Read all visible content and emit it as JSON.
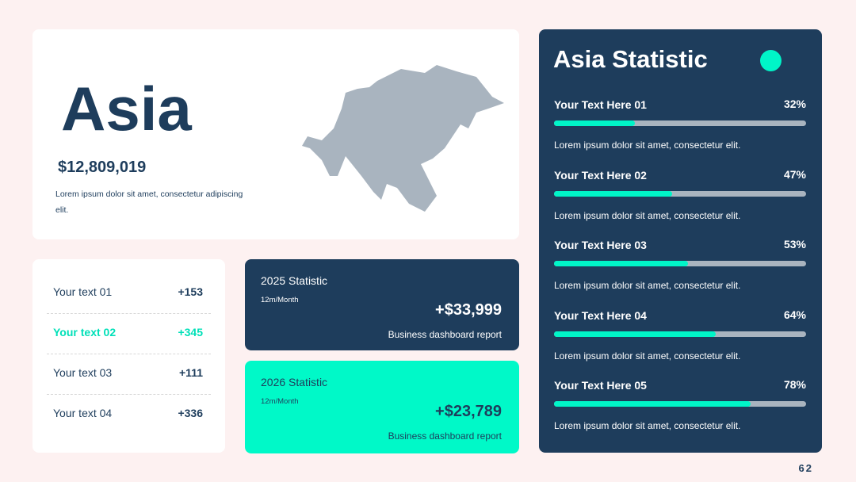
{
  "overview": {
    "title": "Asia",
    "amount": "$12,809,019",
    "description": "Lorem ipsum dolor sit amet, consectetur adipiscing elit."
  },
  "list": [
    {
      "label": "Your text 01",
      "value": "+153"
    },
    {
      "label": "Your text 02",
      "value": "+345"
    },
    {
      "label": "Your text 03",
      "value": "+111"
    },
    {
      "label": "Your text 04",
      "value": "+336"
    }
  ],
  "cards": [
    {
      "title": "2025 Statistic",
      "period": "12m/Month",
      "amount": "+$33,999",
      "caption": "Business dashboard report"
    },
    {
      "title": "2026 Statistic",
      "period": "12m/Month",
      "amount": "+$23,789",
      "caption": "Business dashboard report"
    }
  ],
  "statistics": {
    "title": "Asia Statistic",
    "items": [
      {
        "label": "Your Text Here 01",
        "percent": {
          "value": 32,
          "label": "32%"
        },
        "description": "Lorem ipsum dolor sit amet, consectetur elit."
      },
      {
        "label": "Your Text Here 02",
        "percent": {
          "value": 47,
          "label": "47%"
        },
        "description": "Lorem ipsum dolor sit amet, consectetur elit."
      },
      {
        "label": "Your Text Here 03",
        "percent": {
          "value": 53,
          "label": "53%"
        },
        "description": "Lorem ipsum dolor sit amet, consectetur elit."
      },
      {
        "label": "Your Text Here 04",
        "percent": {
          "value": 64,
          "label": "64%"
        },
        "description": "Lorem ipsum dolor sit amet, consectetur elit."
      },
      {
        "label": "Your Text Here 05",
        "percent": {
          "value": 78,
          "label": "78%"
        },
        "description": "Lorem ipsum dolor sit amet, consectetur elit."
      }
    ]
  },
  "page_number": "62"
}
